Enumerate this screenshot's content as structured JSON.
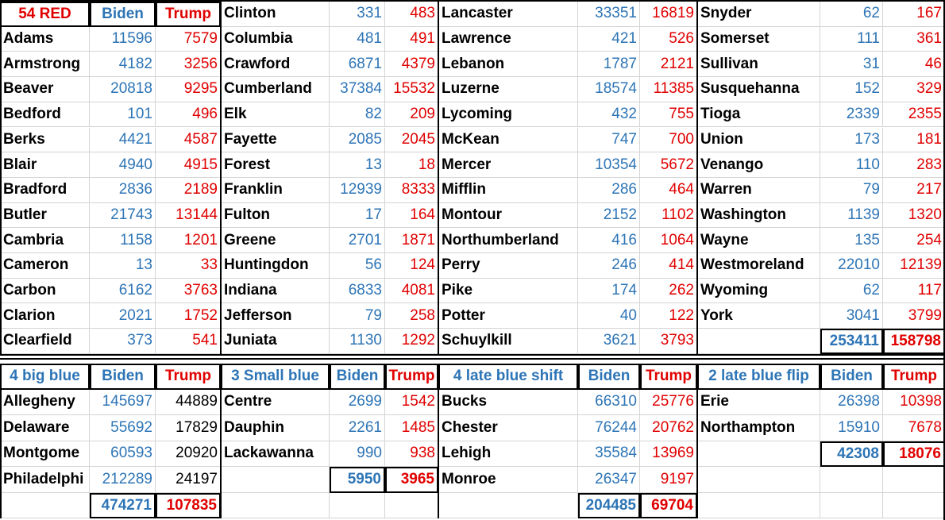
{
  "top": {
    "groups": [
      {
        "header": {
          "name": "54 RED",
          "biden": "Biden",
          "trump": "Trump",
          "color": "#e00000"
        },
        "biden_color": "#2e75b6",
        "trump_color": "#e00000",
        "rows": [
          {
            "name": "Adams",
            "biden": 11596,
            "trump": 7579
          },
          {
            "name": "Armstrong",
            "biden": 4182,
            "trump": 3256
          },
          {
            "name": "Beaver",
            "biden": 20818,
            "trump": 9295
          },
          {
            "name": "Bedford",
            "biden": 101,
            "trump": 496
          },
          {
            "name": "Berks",
            "biden": 4421,
            "trump": 4587
          },
          {
            "name": "Blair",
            "biden": 4940,
            "trump": 4915
          },
          {
            "name": "Bradford",
            "biden": 2836,
            "trump": 2189
          },
          {
            "name": "Butler",
            "biden": 21743,
            "trump": 13144
          },
          {
            "name": "Cambria",
            "biden": 1158,
            "trump": 1201
          },
          {
            "name": "Cameron",
            "biden": 13,
            "trump": 33
          },
          {
            "name": "Carbon",
            "biden": 6162,
            "trump": 3763
          },
          {
            "name": "Clarion",
            "biden": 2021,
            "trump": 1752
          },
          {
            "name": "Clearfield",
            "biden": 373,
            "trump": 541
          }
        ]
      },
      {
        "biden_color": "#2e75b6",
        "trump_color": "#e00000",
        "rows": [
          {
            "name": "Clinton",
            "biden": 331,
            "trump": 483
          },
          {
            "name": "Columbia",
            "biden": 481,
            "trump": 491
          },
          {
            "name": "Crawford",
            "biden": 6871,
            "trump": 4379
          },
          {
            "name": "Cumberland",
            "biden": 37384,
            "trump": 15532
          },
          {
            "name": "Elk",
            "biden": 82,
            "trump": 209
          },
          {
            "name": "Fayette",
            "biden": 2085,
            "trump": 2045
          },
          {
            "name": "Forest",
            "biden": 13,
            "trump": 18
          },
          {
            "name": "Franklin",
            "biden": 12939,
            "trump": 8333
          },
          {
            "name": "Fulton",
            "biden": 17,
            "trump": 164
          },
          {
            "name": "Greene",
            "biden": 2701,
            "trump": 1871
          },
          {
            "name": "Huntingdon",
            "biden": 56,
            "trump": 124
          },
          {
            "name": "Indiana",
            "biden": 6833,
            "trump": 4081
          },
          {
            "name": "Jefferson",
            "biden": 79,
            "trump": 258
          },
          {
            "name": "Juniata",
            "biden": 1130,
            "trump": 1292
          }
        ]
      },
      {
        "biden_color": "#2e75b6",
        "trump_color": "#e00000",
        "rows": [
          {
            "name": "Lancaster",
            "biden": 33351,
            "trump": 16819
          },
          {
            "name": "Lawrence",
            "biden": 421,
            "trump": 526
          },
          {
            "name": "Lebanon",
            "biden": 1787,
            "trump": 2121
          },
          {
            "name": "Luzerne",
            "biden": 18574,
            "trump": 11385
          },
          {
            "name": "Lycoming",
            "biden": 432,
            "trump": 755
          },
          {
            "name": "McKean",
            "biden": 747,
            "trump": 700
          },
          {
            "name": "Mercer",
            "biden": 10354,
            "trump": 5672
          },
          {
            "name": "Mifflin",
            "biden": 286,
            "trump": 464
          },
          {
            "name": "Montour",
            "biden": 2152,
            "trump": 1102
          },
          {
            "name": "Northumberland",
            "biden": 416,
            "trump": 1064
          },
          {
            "name": "Perry",
            "biden": 246,
            "trump": 414
          },
          {
            "name": "Pike",
            "biden": 174,
            "trump": 262
          },
          {
            "name": "Potter",
            "biden": 40,
            "trump": 122
          },
          {
            "name": "Schuylkill",
            "biden": 3621,
            "trump": 3793
          }
        ]
      },
      {
        "biden_color": "#2e75b6",
        "trump_color": "#e00000",
        "rows": [
          {
            "name": "Snyder",
            "biden": 62,
            "trump": 167
          },
          {
            "name": "Somerset",
            "biden": 111,
            "trump": 361
          },
          {
            "name": "Sullivan",
            "biden": 31,
            "trump": 46
          },
          {
            "name": "Susquehanna",
            "biden": 152,
            "trump": 329
          },
          {
            "name": "Tioga",
            "biden": 2339,
            "trump": 2355
          },
          {
            "name": "Union",
            "biden": 173,
            "trump": 181
          },
          {
            "name": "Venango",
            "biden": 110,
            "trump": 283
          },
          {
            "name": "Warren",
            "biden": 79,
            "trump": 217
          },
          {
            "name": "Washington",
            "biden": 1139,
            "trump": 1320
          },
          {
            "name": "Wayne",
            "biden": 135,
            "trump": 254
          },
          {
            "name": "Westmoreland",
            "biden": 22010,
            "trump": 12139
          },
          {
            "name": "Wyoming",
            "biden": 62,
            "trump": 117
          },
          {
            "name": "York",
            "biden": 3041,
            "trump": 3799
          }
        ],
        "total": {
          "biden": 253411,
          "trump": 158798
        }
      }
    ]
  },
  "bottom": {
    "groups": [
      {
        "header": {
          "name": "4 big blue",
          "biden": "Biden",
          "trump": "Trump",
          "color": "#2e75b6"
        },
        "biden_color": "#2e75b6",
        "trump_color": "#000000",
        "rows": [
          {
            "name": "Allegheny",
            "biden": 145697,
            "trump": 44889
          },
          {
            "name": "Delaware",
            "biden": 55692,
            "trump": 17829
          },
          {
            "name": "Montgome",
            "biden": 60593,
            "trump": 20920
          },
          {
            "name": "Philadelphi",
            "biden": 212289,
            "trump": 24197
          }
        ],
        "total": {
          "biden": 474271,
          "trump": 107835
        }
      },
      {
        "header": {
          "name": "3 Small blue",
          "biden": "Biden",
          "trump": "Trump",
          "color": "#2e75b6"
        },
        "biden_color": "#2e75b6",
        "trump_color": "#e00000",
        "rows": [
          {
            "name": "Centre",
            "biden": 2699,
            "trump": 1542
          },
          {
            "name": "Dauphin",
            "biden": 2261,
            "trump": 1485
          },
          {
            "name": "Lackawanna",
            "biden": 990,
            "trump": 938
          }
        ],
        "total": {
          "biden": 5950,
          "trump": 3965
        }
      },
      {
        "header": {
          "name": "4 late blue shift",
          "biden": "Biden",
          "trump": "Trump",
          "color": "#2e75b6"
        },
        "biden_color": "#2e75b6",
        "trump_color": "#e00000",
        "rows": [
          {
            "name": "Bucks",
            "biden": 66310,
            "trump": 25776
          },
          {
            "name": "Chester",
            "biden": 76244,
            "trump": 20762
          },
          {
            "name": "Lehigh",
            "biden": 35584,
            "trump": 13969
          },
          {
            "name": "Monroe",
            "biden": 26347,
            "trump": 9197
          }
        ],
        "total": {
          "biden": 204485,
          "trump": 69704
        }
      },
      {
        "header": {
          "name": "2 late blue flip",
          "biden": "Biden",
          "trump": "Trump",
          "color": "#2e75b6"
        },
        "biden_color": "#2e75b6",
        "trump_color": "#e00000",
        "rows": [
          {
            "name": "Erie",
            "biden": 26398,
            "trump": 10398
          },
          {
            "name": "Northampton",
            "biden": 15910,
            "trump": 7678
          }
        ],
        "total": {
          "biden": 42308,
          "trump": 18076
        }
      }
    ]
  }
}
